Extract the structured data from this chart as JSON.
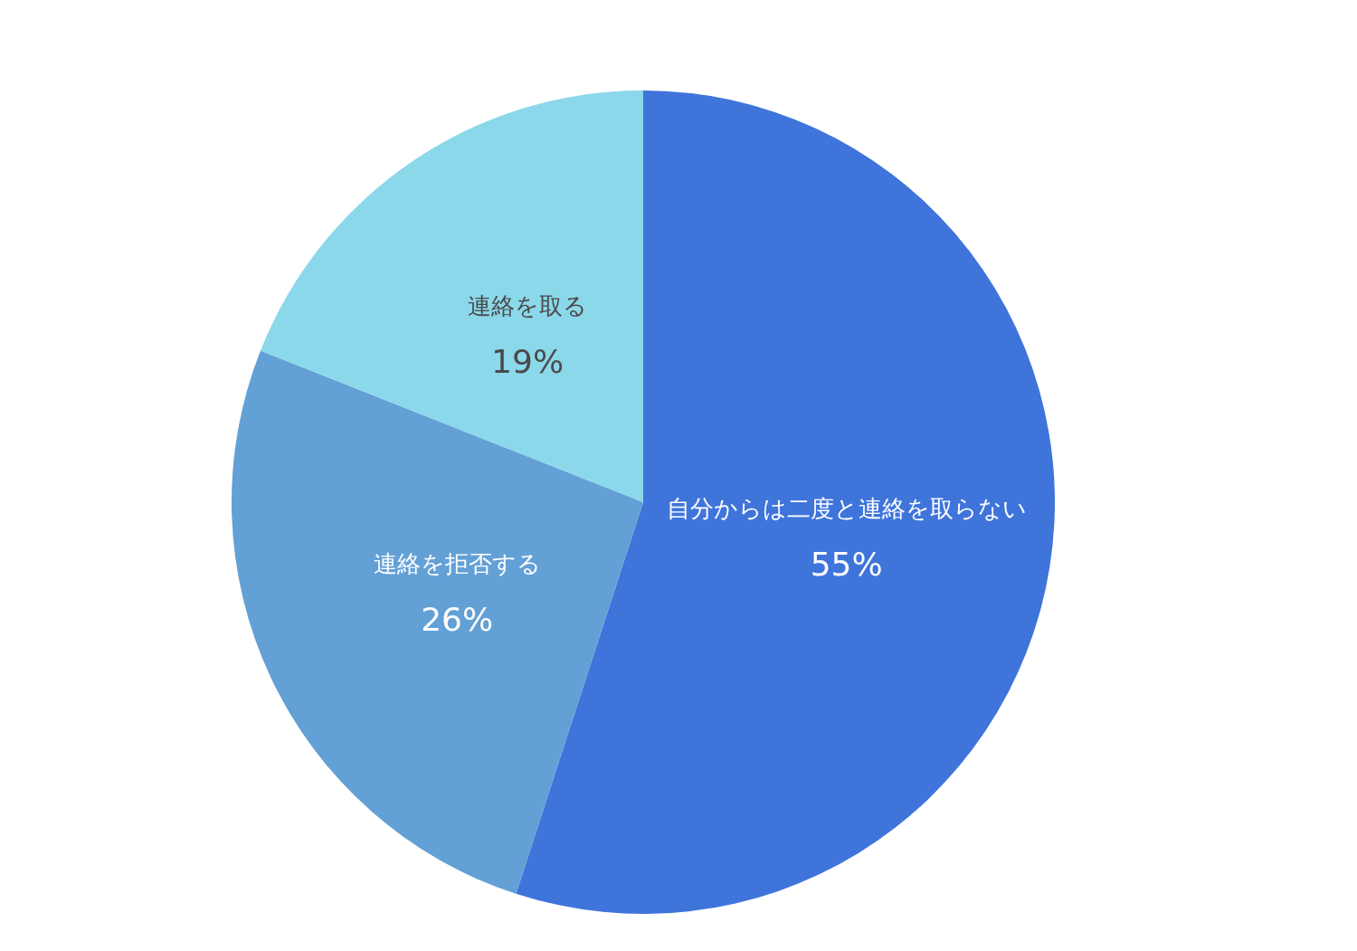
{
  "chart_data": {
    "type": "pie",
    "categories": [
      "自分からは二度と連絡を取らない",
      "連絡を拒否する",
      "連絡を取る"
    ],
    "values": [
      55,
      26,
      19
    ],
    "value_labels": [
      "55%",
      "26%",
      "19%"
    ],
    "colors": [
      "#3f74db",
      "#63a0d6",
      "#8bd8ea"
    ]
  }
}
